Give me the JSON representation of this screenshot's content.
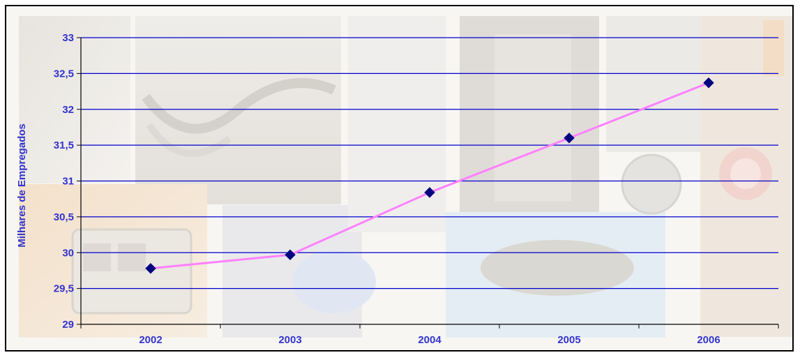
{
  "chart_data": {
    "type": "line",
    "title": "",
    "xlabel": "",
    "ylabel": "Milhares de Empregados",
    "categories": [
      "2002",
      "2003",
      "2004",
      "2005",
      "2006"
    ],
    "series": [
      {
        "values": [
          29.78,
          29.97,
          30.84,
          31.6,
          32.37
        ],
        "line_color": "#ff80ff",
        "marker_color": "#000080",
        "marker": "diamond"
      }
    ],
    "ylim": [
      29,
      33
    ],
    "yticks": [
      "29",
      "29,5",
      "30",
      "30,5",
      "31",
      "31,5",
      "32",
      "32,5",
      "33"
    ],
    "ytick_values": [
      29,
      29.5,
      30,
      30.5,
      31,
      31.5,
      32,
      32.5,
      33
    ],
    "grid": true,
    "grid_color": "#0000cc",
    "label_color": "#3333cc",
    "legend": "none",
    "background": "photo collage"
  }
}
